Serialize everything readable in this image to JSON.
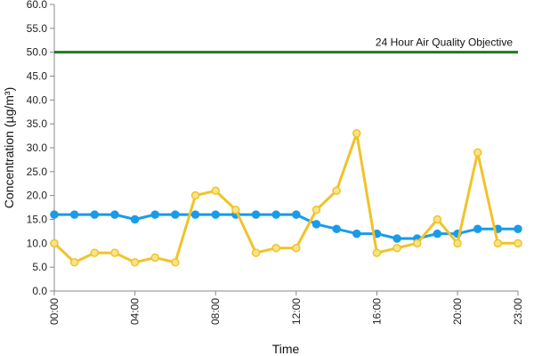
{
  "chart_data": {
    "type": "line",
    "xlabel": "Time",
    "ylabel": "Concentration (µg/m³)",
    "ylim": [
      0,
      60
    ],
    "yticks": [
      "0.0",
      "5.0",
      "10.0",
      "15.0",
      "20.0",
      "25.0",
      "30.0",
      "35.0",
      "40.0",
      "45.0",
      "50.0",
      "55.0",
      "60.0"
    ],
    "x": [
      0,
      1,
      2,
      3,
      4,
      5,
      6,
      7,
      8,
      9,
      10,
      11,
      12,
      13,
      14,
      15,
      16,
      17,
      18,
      19,
      20,
      21,
      22,
      23
    ],
    "xticks": [
      {
        "x": 0,
        "label": "00:00"
      },
      {
        "x": 4,
        "label": "04:00"
      },
      {
        "x": 8,
        "label": "08:00"
      },
      {
        "x": 12,
        "label": "12:00"
      },
      {
        "x": 16,
        "label": "16:00"
      },
      {
        "x": 20,
        "label": "20:00"
      },
      {
        "x": 23,
        "label": "23:00"
      }
    ],
    "grid": false,
    "series": [
      {
        "color": "#1a9be8",
        "marker_fill": "#1a9be8",
        "values": [
          16,
          16,
          16,
          16,
          15,
          16,
          16,
          16,
          16,
          16,
          16,
          16,
          16,
          14,
          13,
          12,
          12,
          11,
          11,
          12,
          12,
          13,
          13,
          13
        ]
      },
      {
        "color": "#f2c228",
        "marker_fill": "#f7e48a",
        "values": [
          10,
          6,
          8,
          8,
          6,
          7,
          6,
          20,
          21,
          17,
          8,
          9,
          9,
          17,
          21,
          33,
          8,
          9,
          10,
          15,
          10,
          29,
          10,
          10
        ]
      }
    ],
    "reference_line": {
      "value": 50,
      "label": "24 Hour Air Quality Objective",
      "color": "#1e7a1e"
    }
  }
}
